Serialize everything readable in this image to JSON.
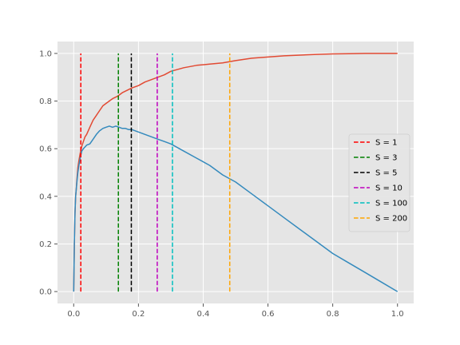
{
  "chart_data": {
    "type": "line",
    "title": "",
    "xlabel": "",
    "ylabel": "",
    "xlim": [
      -0.05,
      1.05
    ],
    "ylim": [
      -0.05,
      1.05
    ],
    "xticks": [
      "0.0",
      "0.2",
      "0.4",
      "0.6",
      "0.8",
      "1.0"
    ],
    "yticks": [
      "0.0",
      "0.2",
      "0.4",
      "0.6",
      "0.8",
      "1.0"
    ],
    "grid": true,
    "legend_position": "center-right",
    "series": [
      {
        "color": "#E24A33",
        "x": [
          0,
          0.002,
          0.004,
          0.006,
          0.008,
          0.01,
          0.013,
          0.016,
          0.02,
          0.025,
          0.03,
          0.035,
          0.04,
          0.05,
          0.06,
          0.07,
          0.08,
          0.09,
          0.1,
          0.11,
          0.12,
          0.135,
          0.15,
          0.165,
          0.18,
          0.2,
          0.22,
          0.24,
          0.26,
          0.28,
          0.3,
          0.34,
          0.38,
          0.42,
          0.46,
          0.5,
          0.55,
          0.6,
          0.65,
          0.7,
          0.75,
          0.8,
          0.85,
          0.9,
          0.95,
          1.0
        ],
        "y": [
          0,
          0.2,
          0.33,
          0.4,
          0.43,
          0.47,
          0.52,
          0.55,
          0.58,
          0.61,
          0.63,
          0.65,
          0.66,
          0.69,
          0.72,
          0.74,
          0.76,
          0.78,
          0.79,
          0.8,
          0.81,
          0.82,
          0.835,
          0.845,
          0.855,
          0.865,
          0.88,
          0.89,
          0.9,
          0.91,
          0.925,
          0.94,
          0.95,
          0.955,
          0.96,
          0.97,
          0.98,
          0.985,
          0.99,
          0.993,
          0.996,
          0.998,
          0.999,
          1.0,
          1.0,
          1.0
        ]
      },
      {
        "color": "#348ABD",
        "x": [
          0,
          0.002,
          0.004,
          0.006,
          0.008,
          0.01,
          0.013,
          0.016,
          0.02,
          0.025,
          0.03,
          0.04,
          0.05,
          0.06,
          0.07,
          0.08,
          0.09,
          0.1,
          0.11,
          0.12,
          0.13,
          0.14,
          0.15,
          0.16,
          0.17,
          0.18,
          0.2,
          0.22,
          0.24,
          0.26,
          0.28,
          0.3,
          0.34,
          0.38,
          0.42,
          0.46,
          0.5,
          0.55,
          0.6,
          0.65,
          0.7,
          0.75,
          0.8,
          0.85,
          0.9,
          0.95,
          1.0
        ],
        "y": [
          0,
          0.2,
          0.33,
          0.4,
          0.43,
          0.46,
          0.5,
          0.53,
          0.56,
          0.59,
          0.6,
          0.615,
          0.62,
          0.64,
          0.66,
          0.675,
          0.685,
          0.69,
          0.695,
          0.69,
          0.695,
          0.69,
          0.685,
          0.685,
          0.68,
          0.68,
          0.67,
          0.66,
          0.65,
          0.64,
          0.63,
          0.62,
          0.59,
          0.56,
          0.53,
          0.49,
          0.46,
          0.41,
          0.36,
          0.31,
          0.26,
          0.21,
          0.16,
          0.12,
          0.08,
          0.04,
          0.0
        ]
      }
    ],
    "vlines": [
      {
        "name": "S = 1",
        "x": 0.022,
        "color": "#ff0000"
      },
      {
        "name": "S = 3",
        "x": 0.138,
        "color": "#008000"
      },
      {
        "name": "S = 5",
        "x": 0.178,
        "color": "#000000"
      },
      {
        "name": "S = 10",
        "x": 0.258,
        "color": "#bf00bf"
      },
      {
        "name": "S = 100",
        "x": 0.305,
        "color": "#00bfbf"
      },
      {
        "name": "S = 200",
        "x": 0.482,
        "color": "#ffa500"
      }
    ],
    "vline_yrange": [
      0,
      1
    ],
    "colors": {
      "plot_background": "#E5E5E5",
      "grid": "#ffffff",
      "tick_text": "#555555"
    }
  }
}
